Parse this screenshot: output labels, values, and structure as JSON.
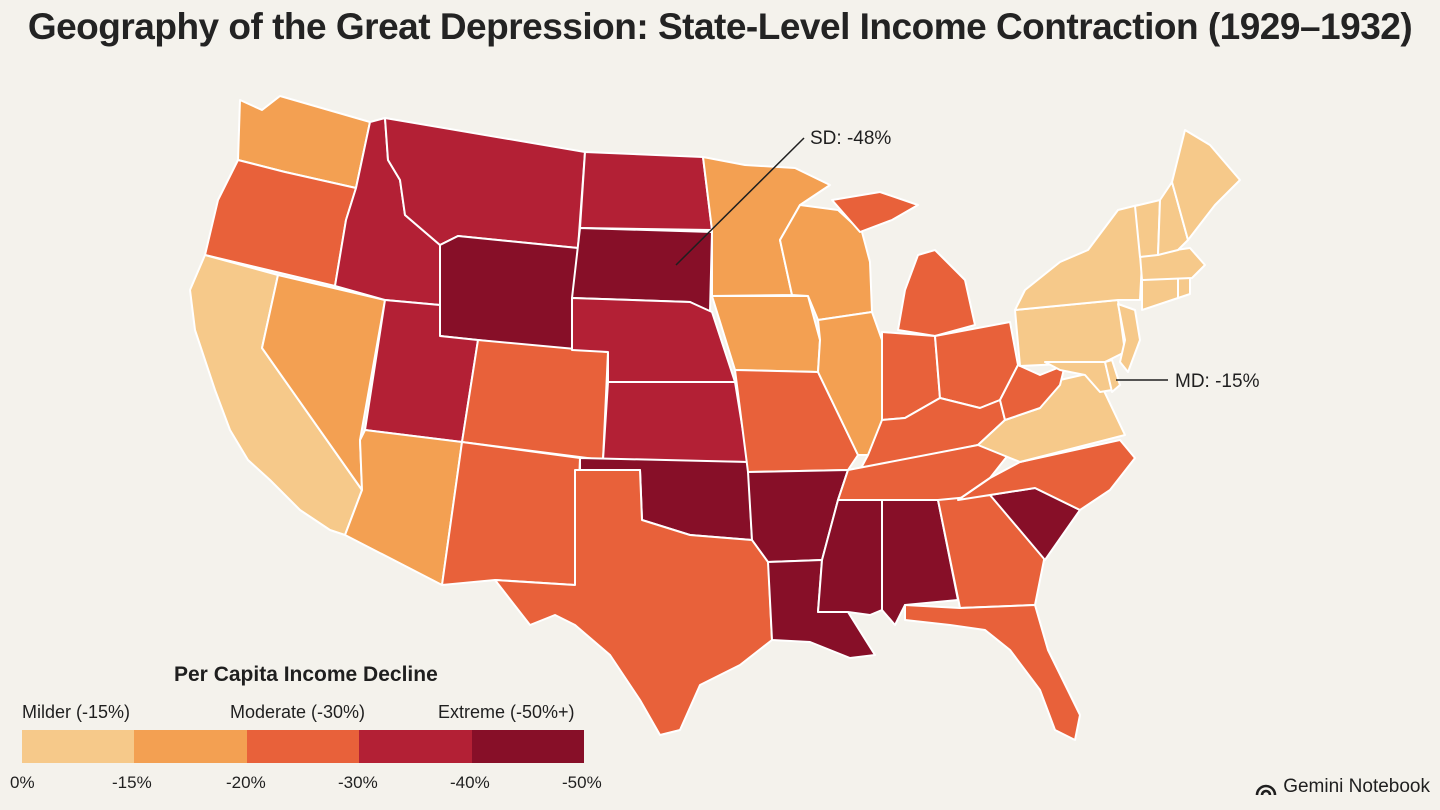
{
  "title": "Geography of the Great Depression: State-Level Income Contraction (1929–1932)",
  "colors": {
    "bin0": "#f6c98a",
    "bin1": "#f3a052",
    "bin2": "#e8613a",
    "bin3": "#b32035",
    "bin4": "#870f28",
    "background": "#f4f2ec"
  },
  "legend": {
    "title": "Per Capita Income Decline",
    "categories": [
      "Milder (-15%)",
      "Moderate (-30%)",
      "Extreme (-50%+)"
    ],
    "ticks": [
      "0%",
      "-15%",
      "-20%",
      "-30%",
      "-40%",
      "-50%"
    ]
  },
  "callouts": [
    {
      "label": "SD: -48%",
      "state": "SD"
    },
    {
      "label": "MD: -15%",
      "state": "MD"
    }
  ],
  "states": [
    {
      "id": "WA",
      "bin": 1
    },
    {
      "id": "OR",
      "bin": 2
    },
    {
      "id": "CA",
      "bin": 0
    },
    {
      "id": "NV",
      "bin": 1
    },
    {
      "id": "ID",
      "bin": 3
    },
    {
      "id": "MT",
      "bin": 3
    },
    {
      "id": "WY",
      "bin": 4
    },
    {
      "id": "UT",
      "bin": 3
    },
    {
      "id": "AZ",
      "bin": 1
    },
    {
      "id": "CO",
      "bin": 2
    },
    {
      "id": "NM",
      "bin": 2
    },
    {
      "id": "ND",
      "bin": 3
    },
    {
      "id": "SD",
      "bin": 4
    },
    {
      "id": "NE",
      "bin": 3
    },
    {
      "id": "KS",
      "bin": 3
    },
    {
      "id": "OK",
      "bin": 4
    },
    {
      "id": "TX",
      "bin": 2
    },
    {
      "id": "MN",
      "bin": 1
    },
    {
      "id": "IA",
      "bin": 1
    },
    {
      "id": "MO",
      "bin": 2
    },
    {
      "id": "AR",
      "bin": 4
    },
    {
      "id": "LA",
      "bin": 4
    },
    {
      "id": "WI",
      "bin": 1
    },
    {
      "id": "IL",
      "bin": 1
    },
    {
      "id": "MI",
      "bin": 2
    },
    {
      "id": "IN",
      "bin": 2
    },
    {
      "id": "OH",
      "bin": 2
    },
    {
      "id": "KY",
      "bin": 2
    },
    {
      "id": "TN",
      "bin": 2
    },
    {
      "id": "MS",
      "bin": 4
    },
    {
      "id": "AL",
      "bin": 4
    },
    {
      "id": "GA",
      "bin": 2
    },
    {
      "id": "FL",
      "bin": 2
    },
    {
      "id": "SC",
      "bin": 4
    },
    {
      "id": "NC",
      "bin": 2
    },
    {
      "id": "VA",
      "bin": 0
    },
    {
      "id": "WV",
      "bin": 2
    },
    {
      "id": "PA",
      "bin": 0
    },
    {
      "id": "NY",
      "bin": 0
    },
    {
      "id": "MD",
      "bin": 0
    },
    {
      "id": "DE",
      "bin": 0
    },
    {
      "id": "NJ",
      "bin": 0
    },
    {
      "id": "CT",
      "bin": 0
    },
    {
      "id": "RI",
      "bin": 0
    },
    {
      "id": "MA",
      "bin": 0
    },
    {
      "id": "VT",
      "bin": 0
    },
    {
      "id": "NH",
      "bin": 0
    },
    {
      "id": "ME",
      "bin": 0
    }
  ],
  "watermark": "Gemini Notebook"
}
